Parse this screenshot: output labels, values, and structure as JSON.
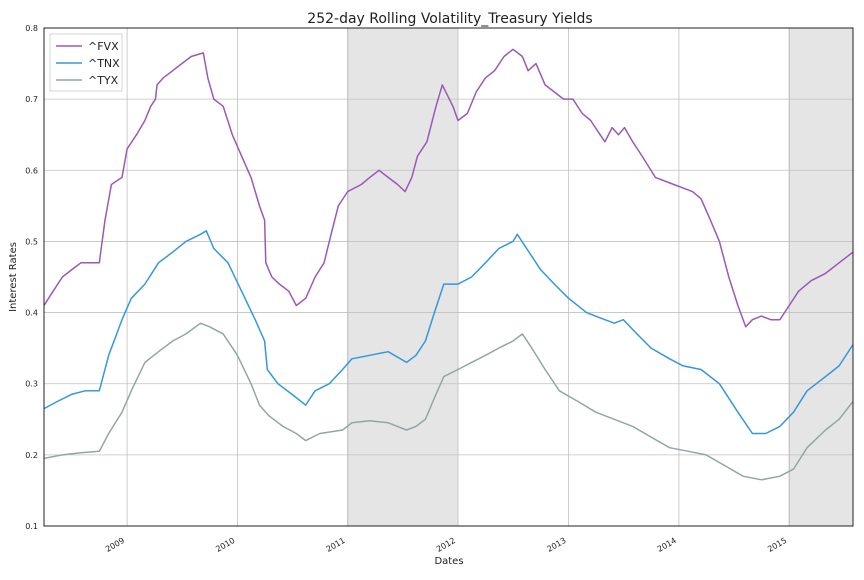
{
  "chart_data": {
    "type": "line",
    "title": "252-day Rolling Volatility_Treasury Yields",
    "xlabel": "Dates",
    "ylabel": "Interest Rates",
    "ylim": [
      0.1,
      0.8
    ],
    "xlim": [
      "2008-04-01",
      "2015-07-31"
    ],
    "yticks": [
      "0.1",
      "0.2",
      "0.3",
      "0.4",
      "0.5",
      "0.6",
      "0.7",
      "0.8"
    ],
    "xticks": [
      {
        "label": "2009",
        "date": "2009-01-01"
      },
      {
        "label": "2010",
        "date": "2010-01-01"
      },
      {
        "label": "2011",
        "date": "2011-01-01"
      },
      {
        "label": "2012",
        "date": "2012-01-01"
      },
      {
        "label": "2013",
        "date": "2013-01-01"
      },
      {
        "label": "2014",
        "date": "2014-01-01"
      },
      {
        "label": "2015",
        "date": "2015-01-01"
      }
    ],
    "grid": true,
    "legend_position": "top-left",
    "shaded_regions": [
      {
        "start": "2011-01-01",
        "end": "2012-01-01"
      },
      {
        "start": "2015-01-01",
        "end": "2015-07-31"
      }
    ],
    "series": [
      {
        "name": "^FVX",
        "color": "#9b59b6",
        "points": [
          [
            "2008-04-01",
            0.41
          ],
          [
            "2008-05-01",
            0.43
          ],
          [
            "2008-06-01",
            0.45
          ],
          [
            "2008-07-01",
            0.46
          ],
          [
            "2008-08-01",
            0.47
          ],
          [
            "2008-10-01",
            0.47
          ],
          [
            "2008-10-20",
            0.53
          ],
          [
            "2008-11-10",
            0.58
          ],
          [
            "2008-12-15",
            0.59
          ],
          [
            "2009-01-01",
            0.63
          ],
          [
            "2009-02-01",
            0.65
          ],
          [
            "2009-03-01",
            0.67
          ],
          [
            "2009-03-20",
            0.69
          ],
          [
            "2009-04-05",
            0.7
          ],
          [
            "2009-04-10",
            0.72
          ],
          [
            "2009-05-01",
            0.73
          ],
          [
            "2009-06-01",
            0.74
          ],
          [
            "2009-07-01",
            0.75
          ],
          [
            "2009-08-01",
            0.76
          ],
          [
            "2009-09-10",
            0.765
          ],
          [
            "2009-09-25",
            0.73
          ],
          [
            "2009-10-15",
            0.7
          ],
          [
            "2009-11-15",
            0.69
          ],
          [
            "2009-12-15",
            0.65
          ],
          [
            "2010-01-15",
            0.62
          ],
          [
            "2010-02-15",
            0.59
          ],
          [
            "2010-03-15",
            0.55
          ],
          [
            "2010-04-01",
            0.53
          ],
          [
            "2010-04-05",
            0.47
          ],
          [
            "2010-04-25",
            0.45
          ],
          [
            "2010-05-20",
            0.44
          ],
          [
            "2010-06-20",
            0.43
          ],
          [
            "2010-07-15",
            0.41
          ],
          [
            "2010-08-15",
            0.42
          ],
          [
            "2010-09-15",
            0.45
          ],
          [
            "2010-10-15",
            0.47
          ],
          [
            "2010-11-01",
            0.5
          ],
          [
            "2010-12-01",
            0.55
          ],
          [
            "2011-01-01",
            0.57
          ],
          [
            "2011-02-15",
            0.58
          ],
          [
            "2011-03-15",
            0.59
          ],
          [
            "2011-04-15",
            0.6
          ],
          [
            "2011-05-15",
            0.59
          ],
          [
            "2011-06-15",
            0.58
          ],
          [
            "2011-07-10",
            0.57
          ],
          [
            "2011-08-01",
            0.59
          ],
          [
            "2011-08-20",
            0.62
          ],
          [
            "2011-09-20",
            0.64
          ],
          [
            "2011-10-20",
            0.69
          ],
          [
            "2011-11-10",
            0.72
          ],
          [
            "2011-12-15",
            0.69
          ],
          [
            "2012-01-01",
            0.67
          ],
          [
            "2012-02-01",
            0.68
          ],
          [
            "2012-03-01",
            0.71
          ],
          [
            "2012-04-01",
            0.73
          ],
          [
            "2012-05-01",
            0.74
          ],
          [
            "2012-06-01",
            0.76
          ],
          [
            "2012-07-01",
            0.77
          ],
          [
            "2012-08-01",
            0.76
          ],
          [
            "2012-08-20",
            0.74
          ],
          [
            "2012-09-15",
            0.75
          ],
          [
            "2012-10-15",
            0.72
          ],
          [
            "2012-11-15",
            0.71
          ],
          [
            "2012-12-15",
            0.7
          ],
          [
            "2013-01-15",
            0.7
          ],
          [
            "2013-02-15",
            0.68
          ],
          [
            "2013-03-15",
            0.67
          ],
          [
            "2013-04-15",
            0.65
          ],
          [
            "2013-05-01",
            0.64
          ],
          [
            "2013-05-25",
            0.66
          ],
          [
            "2013-06-15",
            0.65
          ],
          [
            "2013-07-05",
            0.66
          ],
          [
            "2013-08-01",
            0.64
          ],
          [
            "2013-09-01",
            0.62
          ],
          [
            "2013-10-15",
            0.59
          ],
          [
            "2013-11-15",
            0.585
          ],
          [
            "2013-12-15",
            0.58
          ],
          [
            "2014-01-15",
            0.575
          ],
          [
            "2014-02-15",
            0.57
          ],
          [
            "2014-03-15",
            0.56
          ],
          [
            "2014-04-15",
            0.53
          ],
          [
            "2014-05-15",
            0.5
          ],
          [
            "2014-06-15",
            0.45
          ],
          [
            "2014-07-15",
            0.41
          ],
          [
            "2014-08-10",
            0.38
          ],
          [
            "2014-09-01",
            0.39
          ],
          [
            "2014-10-01",
            0.395
          ],
          [
            "2014-11-01",
            0.39
          ],
          [
            "2014-12-01",
            0.39
          ],
          [
            "2015-01-01",
            0.41
          ],
          [
            "2015-02-01",
            0.43
          ],
          [
            "2015-03-15",
            0.445
          ],
          [
            "2015-05-01",
            0.455
          ],
          [
            "2015-06-15",
            0.47
          ],
          [
            "2015-07-31",
            0.485
          ]
        ]
      },
      {
        "name": "^TNX",
        "color": "#3498db",
        "points": [
          [
            "2008-04-01",
            0.265
          ],
          [
            "2008-05-15",
            0.275
          ],
          [
            "2008-07-01",
            0.285
          ],
          [
            "2008-08-15",
            0.29
          ],
          [
            "2008-10-01",
            0.29
          ],
          [
            "2008-11-01",
            0.34
          ],
          [
            "2008-12-15",
            0.39
          ],
          [
            "2009-01-15",
            0.42
          ],
          [
            "2009-03-01",
            0.44
          ],
          [
            "2009-04-15",
            0.47
          ],
          [
            "2009-06-01",
            0.485
          ],
          [
            "2009-07-15",
            0.5
          ],
          [
            "2009-09-01",
            0.51
          ],
          [
            "2009-09-20",
            0.515
          ],
          [
            "2009-10-15",
            0.49
          ],
          [
            "2009-12-01",
            0.47
          ],
          [
            "2010-01-15",
            0.43
          ],
          [
            "2010-03-01",
            0.39
          ],
          [
            "2010-04-01",
            0.36
          ],
          [
            "2010-04-10",
            0.32
          ],
          [
            "2010-05-15",
            0.3
          ],
          [
            "2010-07-01",
            0.285
          ],
          [
            "2010-08-15",
            0.27
          ],
          [
            "2010-09-15",
            0.29
          ],
          [
            "2010-11-01",
            0.3
          ],
          [
            "2010-12-15",
            0.32
          ],
          [
            "2011-01-15",
            0.335
          ],
          [
            "2011-03-15",
            0.34
          ],
          [
            "2011-05-15",
            0.345
          ],
          [
            "2011-07-15",
            0.33
          ],
          [
            "2011-08-15",
            0.34
          ],
          [
            "2011-09-15",
            0.36
          ],
          [
            "2011-10-15",
            0.4
          ],
          [
            "2011-11-15",
            0.44
          ],
          [
            "2012-01-01",
            0.44
          ],
          [
            "2012-02-15",
            0.45
          ],
          [
            "2012-04-01",
            0.47
          ],
          [
            "2012-05-15",
            0.49
          ],
          [
            "2012-07-01",
            0.5
          ],
          [
            "2012-07-15",
            0.51
          ],
          [
            "2012-08-15",
            0.49
          ],
          [
            "2012-10-01",
            0.46
          ],
          [
            "2012-11-15",
            0.44
          ],
          [
            "2013-01-01",
            0.42
          ],
          [
            "2013-03-01",
            0.4
          ],
          [
            "2013-05-01",
            0.39
          ],
          [
            "2013-06-01",
            0.385
          ],
          [
            "2013-07-01",
            0.39
          ],
          [
            "2013-08-15",
            0.37
          ],
          [
            "2013-10-01",
            0.35
          ],
          [
            "2013-12-01",
            0.335
          ],
          [
            "2014-01-15",
            0.325
          ],
          [
            "2014-03-15",
            0.32
          ],
          [
            "2014-05-15",
            0.3
          ],
          [
            "2014-07-15",
            0.26
          ],
          [
            "2014-09-01",
            0.23
          ],
          [
            "2014-10-15",
            0.23
          ],
          [
            "2014-12-01",
            0.24
          ],
          [
            "2015-01-15",
            0.26
          ],
          [
            "2015-03-01",
            0.29
          ],
          [
            "2015-05-01",
            0.31
          ],
          [
            "2015-06-15",
            0.325
          ],
          [
            "2015-07-31",
            0.355
          ]
        ]
      },
      {
        "name": "^TYX",
        "color": "#95a5a6",
        "points": [
          [
            "2008-04-01",
            0.195
          ],
          [
            "2008-06-01",
            0.2
          ],
          [
            "2008-08-01",
            0.203
          ],
          [
            "2008-10-01",
            0.205
          ],
          [
            "2008-11-01",
            0.23
          ],
          [
            "2008-12-15",
            0.26
          ],
          [
            "2009-01-15",
            0.29
          ],
          [
            "2009-03-01",
            0.33
          ],
          [
            "2009-04-15",
            0.345
          ],
          [
            "2009-06-01",
            0.36
          ],
          [
            "2009-07-15",
            0.37
          ],
          [
            "2009-09-01",
            0.385
          ],
          [
            "2009-10-01",
            0.38
          ],
          [
            "2009-11-15",
            0.37
          ],
          [
            "2010-01-01",
            0.34
          ],
          [
            "2010-02-15",
            0.3
          ],
          [
            "2010-03-15",
            0.27
          ],
          [
            "2010-04-15",
            0.255
          ],
          [
            "2010-06-01",
            0.24
          ],
          [
            "2010-07-15",
            0.23
          ],
          [
            "2010-08-15",
            0.22
          ],
          [
            "2010-10-01",
            0.23
          ],
          [
            "2010-12-15",
            0.235
          ],
          [
            "2011-01-15",
            0.245
          ],
          [
            "2011-03-15",
            0.248
          ],
          [
            "2011-05-15",
            0.245
          ],
          [
            "2011-07-15",
            0.235
          ],
          [
            "2011-08-15",
            0.24
          ],
          [
            "2011-09-15",
            0.25
          ],
          [
            "2011-10-15",
            0.28
          ],
          [
            "2011-11-15",
            0.31
          ],
          [
            "2012-01-01",
            0.32
          ],
          [
            "2012-02-15",
            0.33
          ],
          [
            "2012-04-01",
            0.34
          ],
          [
            "2012-05-15",
            0.35
          ],
          [
            "2012-07-01",
            0.36
          ],
          [
            "2012-08-01",
            0.37
          ],
          [
            "2012-09-01",
            0.35
          ],
          [
            "2012-10-15",
            0.32
          ],
          [
            "2012-12-01",
            0.29
          ],
          [
            "2013-02-01",
            0.275
          ],
          [
            "2013-04-01",
            0.26
          ],
          [
            "2013-06-01",
            0.25
          ],
          [
            "2013-08-01",
            0.24
          ],
          [
            "2013-10-01",
            0.225
          ],
          [
            "2013-12-01",
            0.21
          ],
          [
            "2014-02-01",
            0.205
          ],
          [
            "2014-04-01",
            0.2
          ],
          [
            "2014-06-01",
            0.185
          ],
          [
            "2014-08-01",
            0.17
          ],
          [
            "2014-10-01",
            0.165
          ],
          [
            "2014-12-01",
            0.17
          ],
          [
            "2015-01-15",
            0.18
          ],
          [
            "2015-03-01",
            0.21
          ],
          [
            "2015-05-01",
            0.235
          ],
          [
            "2015-06-15",
            0.25
          ],
          [
            "2015-07-31",
            0.275
          ]
        ]
      }
    ]
  }
}
